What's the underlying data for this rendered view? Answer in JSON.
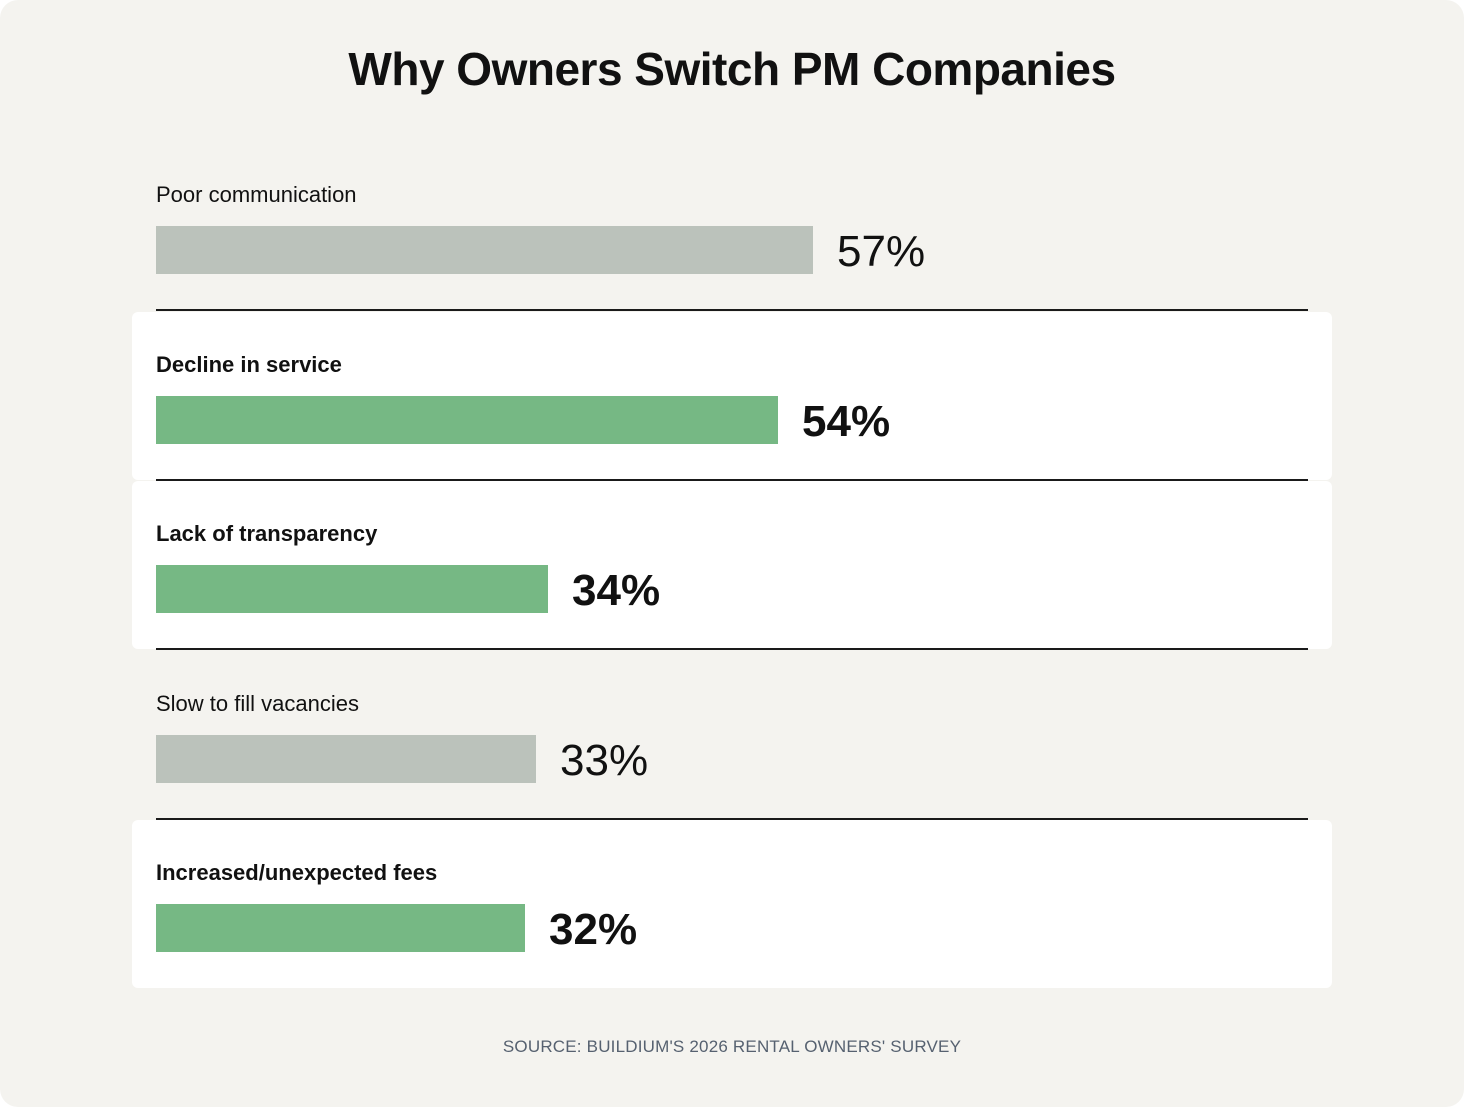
{
  "chart_data": {
    "type": "bar",
    "orientation": "horizontal",
    "title": "Why Owners Switch PM Companies",
    "categories": [
      "Poor communication",
      "Decline in service",
      "Lack of transparency",
      "Slow to fill vacancies",
      "Increased/unexpected fees"
    ],
    "values": [
      57,
      54,
      34,
      33,
      32
    ],
    "value_labels": [
      "57%",
      "54%",
      "34%",
      "33%",
      "32%"
    ],
    "highlighted": [
      false,
      true,
      true,
      false,
      true
    ],
    "xlim": [
      0,
      100
    ],
    "colors": {
      "highlight_bar": "#76b884",
      "default_bar": "#bbc2bb",
      "background": "#f4f3ef",
      "highlight_row": "#ffffff"
    },
    "source": "SOURCE: BUILDIUM'S 2026 RENTAL OWNERS' SURVEY"
  }
}
